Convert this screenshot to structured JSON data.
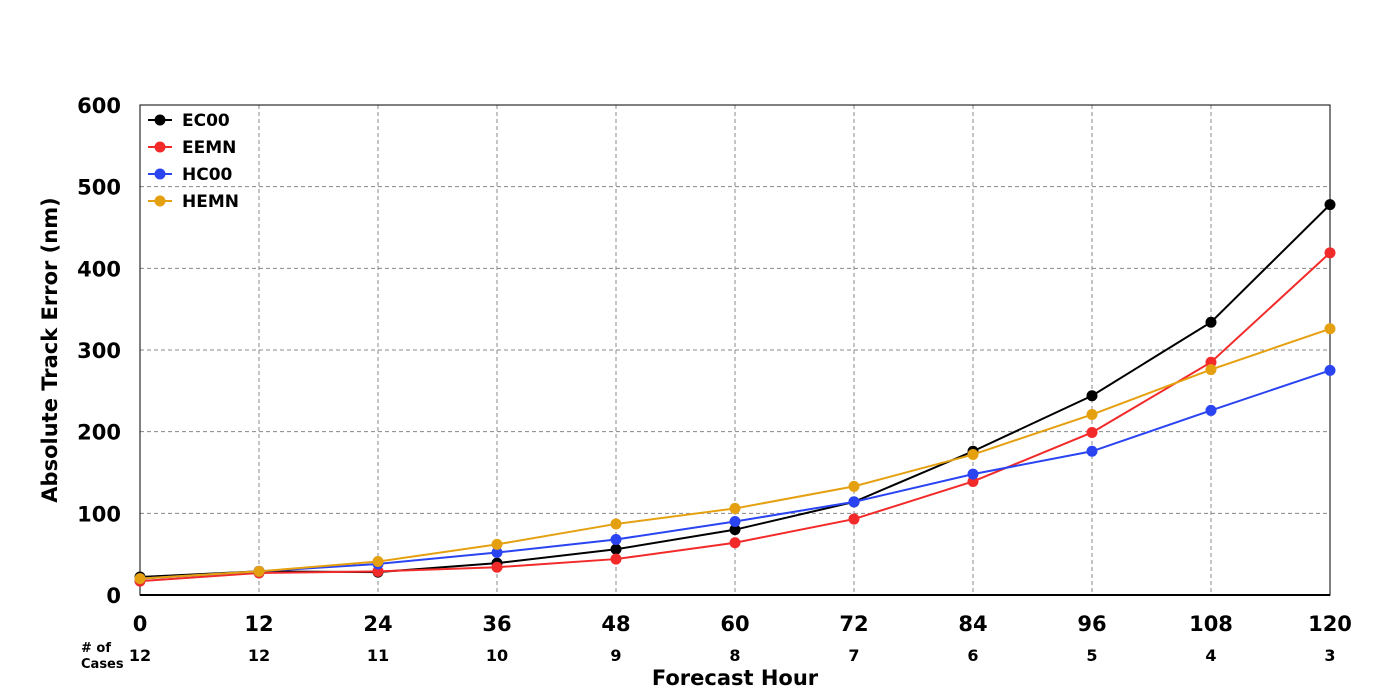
{
  "chart_data": {
    "type": "line",
    "xlabel": "Forecast Hour",
    "ylabel": "Absolute Track Error (nm)",
    "x": [
      0,
      12,
      24,
      36,
      48,
      60,
      72,
      84,
      96,
      108,
      120
    ],
    "xlim": [
      0,
      120
    ],
    "ylim": [
      0,
      600
    ],
    "yticks": [
      0,
      100,
      200,
      300,
      400,
      500,
      600
    ],
    "grid": true,
    "legend_position": "top-left",
    "cases_title": [
      "# of",
      "Cases"
    ],
    "cases": [
      "12",
      "12",
      "11",
      "10",
      "9",
      "8",
      "7",
      "6",
      "5",
      "4",
      "3"
    ],
    "series": [
      {
        "name": "EC00",
        "color": "#000000",
        "values": [
          22,
          29,
          28,
          39,
          56,
          80,
          114,
          176,
          244,
          334,
          478
        ]
      },
      {
        "name": "EEMN",
        "color": "#f22a2a",
        "values": [
          17,
          27,
          29,
          34,
          44,
          64,
          93,
          139,
          199,
          285,
          419
        ]
      },
      {
        "name": "HC00",
        "color": "#2a44f2",
        "values": [
          20,
          29,
          38,
          52,
          68,
          90,
          114,
          148,
          176,
          226,
          275
        ]
      },
      {
        "name": "HEMN",
        "color": "#e5a010",
        "values": [
          20,
          29,
          41,
          62,
          87,
          106,
          133,
          172,
          221,
          276,
          326
        ]
      }
    ]
  }
}
